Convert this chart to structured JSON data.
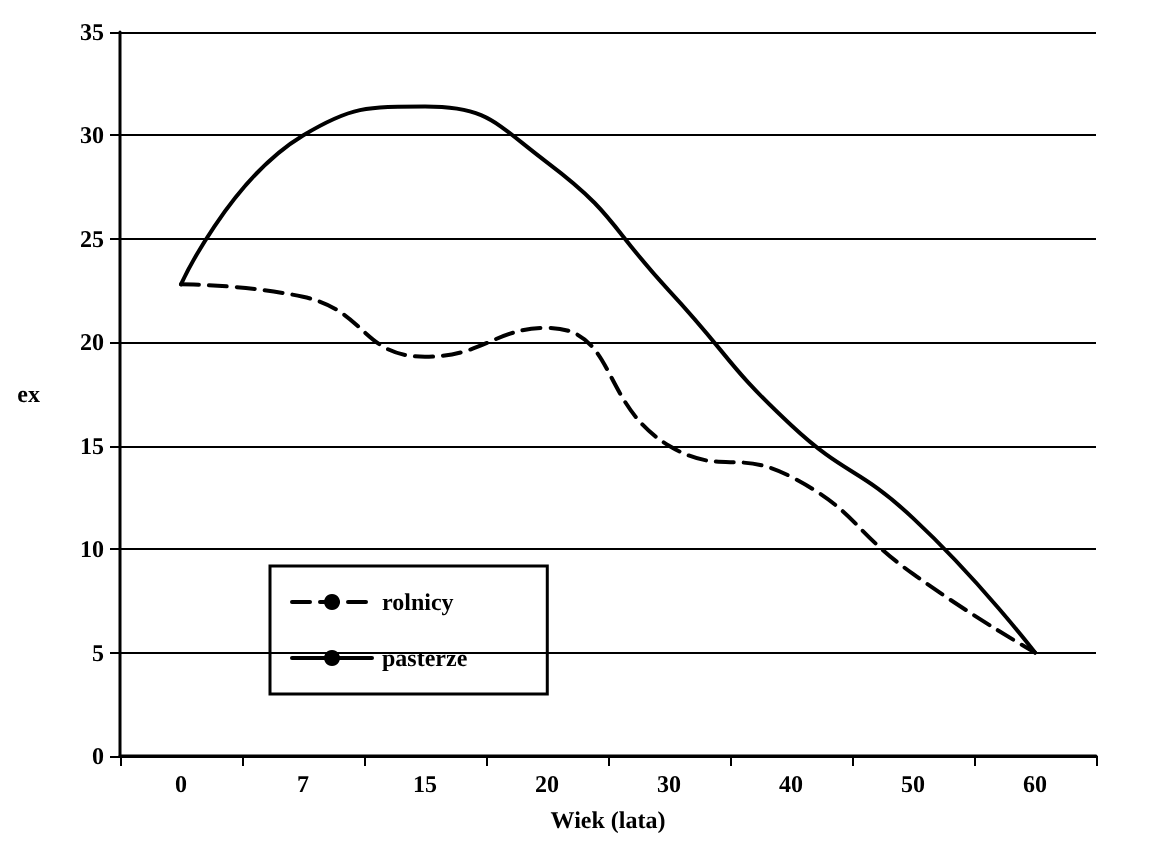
{
  "chart_data": {
    "type": "line",
    "xlabel": "Wiek (lata)",
    "ylabel": "ex",
    "categories": [
      "0",
      "7",
      "15",
      "20",
      "30",
      "40",
      "50",
      "60"
    ],
    "series": [
      {
        "name": "rolnicy",
        "color": "#000000",
        "line_style": "dashed",
        "values": [
          22.8,
          22.2,
          19.3,
          20.7,
          15,
          13.5,
          8.8,
          5
        ]
      },
      {
        "name": "pasterze",
        "color": "#000000",
        "line_style": "solid",
        "values": [
          22.8,
          30,
          31.4,
          28.7,
          22.5,
          16,
          11.5,
          5
        ]
      }
    ],
    "ylim": [
      0,
      35
    ],
    "yticks": [
      0,
      5,
      10,
      15,
      20,
      25,
      30,
      35
    ],
    "grid": "y",
    "legend": "bottom left",
    "marker": "none"
  }
}
